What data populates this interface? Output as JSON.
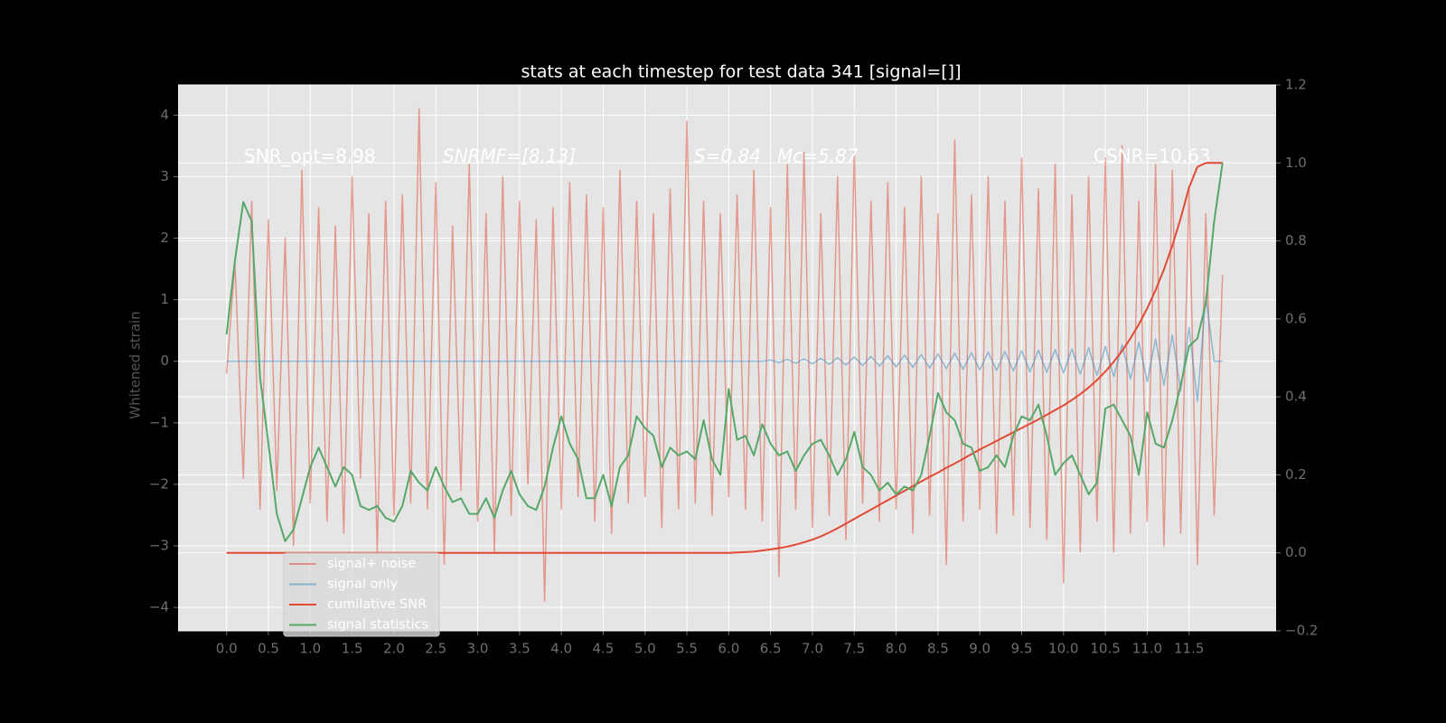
{
  "chart_data": {
    "type": "line",
    "title": "stats at each timestep for test data 341 [signal=[]]",
    "ylabel": "Whitened strain",
    "annotations": [
      "SNR_opt=8.98",
      "SNRMF=[8.13]",
      "S=0.84",
      "Mc=5.87",
      "CSNR=10.63"
    ],
    "x": [
      0,
      0.1,
      0.2,
      0.3,
      0.4,
      0.5,
      0.6,
      0.7,
      0.8,
      0.9,
      1,
      1.1,
      1.2,
      1.3,
      1.4,
      1.5,
      1.6,
      1.7,
      1.8,
      1.9,
      2,
      2.1,
      2.2,
      2.3,
      2.4,
      2.5,
      2.6,
      2.7,
      2.8,
      2.9,
      3,
      3.1,
      3.2,
      3.3,
      3.4,
      3.5,
      3.6,
      3.7,
      3.8,
      3.9,
      4,
      4.1,
      4.2,
      4.3,
      4.4,
      4.5,
      4.6,
      4.7,
      4.8,
      4.9,
      5,
      5.1,
      5.2,
      5.3,
      5.4,
      5.5,
      5.6,
      5.7,
      5.8,
      5.9,
      6,
      6.1,
      6.2,
      6.3,
      6.4,
      6.5,
      6.6,
      6.7,
      6.8,
      6.9,
      7,
      7.1,
      7.2,
      7.3,
      7.4,
      7.5,
      7.6,
      7.7,
      7.8,
      7.9,
      8,
      8.1,
      8.2,
      8.3,
      8.4,
      8.5,
      8.6,
      8.7,
      8.8,
      8.9,
      9,
      9.1,
      9.2,
      9.3,
      9.4,
      9.5,
      9.6,
      9.7,
      9.8,
      9.9,
      10,
      10.1,
      10.2,
      10.3,
      10.4,
      10.5,
      10.6,
      10.7,
      10.8,
      10.9,
      11,
      11.1,
      11.2,
      11.3,
      11.4,
      11.5,
      11.6,
      11.7,
      11.8,
      11.9
    ],
    "series": [
      {
        "name": "signal+ noise",
        "color": "#E24A33",
        "alpha": 0.5,
        "values": [
          -0.2,
          1.6,
          -1.9,
          2.6,
          -2.4,
          2.3,
          -2.1,
          2.0,
          -3.0,
          3.1,
          -2.3,
          2.5,
          -2.6,
          2.2,
          -2.8,
          3.0,
          -1.9,
          2.4,
          -3.1,
          2.6,
          -2.5,
          2.7,
          -2.3,
          4.1,
          -2.4,
          2.9,
          -3.3,
          2.2,
          -2.1,
          3.2,
          -2.6,
          2.4,
          -3.1,
          3.0,
          -2.5,
          2.6,
          -2.0,
          2.3,
          -3.9,
          2.5,
          -2.4,
          2.9,
          -2.2,
          2.7,
          -2.6,
          2.5,
          -2.8,
          3.1,
          -2.3,
          2.6,
          -2.2,
          2.4,
          -2.7,
          2.8,
          -2.4,
          3.9,
          -2.3,
          2.6,
          -2.5,
          2.4,
          -2.2,
          2.7,
          -2.4,
          3.1,
          -2.6,
          2.5,
          -3.5,
          3.2,
          -2.4,
          3.4,
          -2.7,
          2.4,
          -2.5,
          3.0,
          -2.9,
          3.4,
          -2.3,
          2.6,
          -2.6,
          2.9,
          -2.4,
          2.5,
          -2.8,
          3.0,
          -2.5,
          2.4,
          -3.3,
          3.6,
          -2.6,
          2.7,
          -2.4,
          3.0,
          -2.8,
          2.6,
          -2.5,
          3.3,
          -2.7,
          2.8,
          -2.9,
          3.2,
          -3.6,
          2.7,
          -3.1,
          3.0,
          -2.6,
          3.3,
          -3.1,
          3.5,
          -2.8,
          2.6,
          -2.6,
          3.2,
          -3.0,
          3.1,
          -2.8,
          2.8,
          -3.3,
          2.4,
          -2.5,
          1.4
        ]
      },
      {
        "name": "signal only",
        "color": "#348ABD",
        "alpha": 0.5,
        "values": [
          0,
          0,
          0,
          0,
          0,
          0,
          0,
          0,
          0,
          0,
          0,
          0,
          0,
          0,
          0,
          0,
          0,
          0,
          0,
          0,
          0,
          0,
          0,
          0,
          0,
          0,
          0,
          0,
          0,
          0,
          0,
          0,
          0,
          0,
          0,
          0,
          0,
          0,
          0,
          0,
          0,
          0,
          0,
          0,
          0,
          0,
          0,
          0,
          0,
          0,
          0,
          0,
          0,
          0,
          0,
          0,
          0,
          0,
          0,
          0,
          0,
          0,
          0,
          0,
          0,
          0.02,
          -0.02,
          0.03,
          -0.03,
          0.04,
          -0.04,
          0.05,
          -0.05,
          0.06,
          -0.06,
          0.07,
          -0.07,
          0.08,
          -0.08,
          0.09,
          -0.09,
          0.1,
          -0.1,
          0.11,
          -0.11,
          0.12,
          -0.12,
          0.13,
          -0.13,
          0.14,
          -0.14,
          0.15,
          -0.15,
          0.16,
          -0.16,
          0.17,
          -0.17,
          0.18,
          -0.18,
          0.19,
          -0.19,
          0.2,
          -0.21,
          0.22,
          -0.23,
          0.24,
          -0.25,
          0.27,
          -0.29,
          0.31,
          -0.33,
          0.36,
          -0.39,
          0.43,
          -0.48,
          0.55,
          -0.65,
          1.05,
          0,
          0
        ]
      },
      {
        "name": "cumilative SNR",
        "color": "#E24A33",
        "axis": "y2",
        "values": [
          0,
          0,
          0,
          0,
          0,
          0,
          0,
          0,
          0,
          0,
          0,
          0,
          0,
          0,
          0,
          0,
          0,
          0,
          0,
          0,
          0,
          0,
          0,
          0,
          0,
          0,
          0,
          0,
          0,
          0,
          0,
          0,
          0,
          0,
          0,
          0,
          0,
          0,
          0,
          0,
          0,
          0,
          0,
          0,
          0,
          0,
          0,
          0,
          0,
          0,
          0,
          0,
          0,
          0,
          0,
          0,
          0,
          0,
          0,
          0,
          0,
          0.001,
          0.002,
          0.003,
          0.006,
          0.009,
          0.012,
          0.016,
          0.021,
          0.027,
          0.034,
          0.042,
          0.052,
          0.063,
          0.075,
          0.087,
          0.099,
          0.111,
          0.123,
          0.135,
          0.147,
          0.159,
          0.171,
          0.183,
          0.195,
          0.206,
          0.218,
          0.229,
          0.241,
          0.253,
          0.265,
          0.276,
          0.287,
          0.298,
          0.309,
          0.32,
          0.331,
          0.342,
          0.354,
          0.366,
          0.378,
          0.392,
          0.407,
          0.424,
          0.443,
          0.465,
          0.49,
          0.518,
          0.55,
          0.586,
          0.627,
          0.674,
          0.727,
          0.788,
          0.858,
          0.937,
          0.99,
          1.0,
          1.0,
          1.0
        ]
      },
      {
        "name": "signal statistics",
        "color": "#55A868",
        "axis": "y2",
        "values": [
          0.56,
          0.75,
          0.9,
          0.85,
          0.45,
          0.28,
          0.1,
          0.03,
          0.06,
          0.14,
          0.22,
          0.27,
          0.22,
          0.17,
          0.22,
          0.2,
          0.12,
          0.11,
          0.12,
          0.09,
          0.08,
          0.12,
          0.21,
          0.18,
          0.16,
          0.22,
          0.17,
          0.13,
          0.14,
          0.1,
          0.1,
          0.14,
          0.09,
          0.16,
          0.21,
          0.15,
          0.12,
          0.11,
          0.17,
          0.27,
          0.35,
          0.28,
          0.24,
          0.14,
          0.14,
          0.2,
          0.12,
          0.22,
          0.25,
          0.35,
          0.32,
          0.3,
          0.22,
          0.27,
          0.25,
          0.26,
          0.24,
          0.34,
          0.24,
          0.2,
          0.42,
          0.29,
          0.3,
          0.25,
          0.33,
          0.28,
          0.25,
          0.26,
          0.21,
          0.25,
          0.28,
          0.29,
          0.25,
          0.2,
          0.24,
          0.31,
          0.22,
          0.2,
          0.16,
          0.18,
          0.15,
          0.17,
          0.16,
          0.2,
          0.3,
          0.41,
          0.36,
          0.34,
          0.28,
          0.27,
          0.21,
          0.22,
          0.25,
          0.22,
          0.3,
          0.35,
          0.34,
          0.38,
          0.3,
          0.2,
          0.23,
          0.25,
          0.2,
          0.15,
          0.18,
          0.37,
          0.38,
          0.34,
          0.3,
          0.2,
          0.36,
          0.28,
          0.27,
          0.34,
          0.43,
          0.53,
          0.55,
          0.64,
          0.85,
          1.0
        ]
      }
    ],
    "xlim": [
      -0.58,
      12.54
    ],
    "xticks": [
      {
        "value": 0,
        "label": "0.0"
      },
      0.5,
      {
        "value": 1,
        "label": "1.0"
      },
      1.5,
      {
        "value": 2,
        "label": "2.0"
      },
      2.5,
      {
        "value": 3,
        "label": "3.0"
      },
      3.5,
      {
        "value": 4,
        "label": "4.0"
      },
      4.5,
      {
        "value": 5,
        "label": "5.0"
      },
      5.5,
      {
        "value": 6,
        "label": "6.0"
      },
      6.5,
      {
        "value": 7,
        "label": "7.0"
      },
      7.5,
      {
        "value": 8,
        "label": "8.0"
      },
      8.5,
      {
        "value": 9,
        "label": "9.0"
      },
      9.5,
      {
        "value": 10,
        "label": "10.0"
      },
      10.5,
      {
        "value": 11,
        "label": "11.0"
      },
      11.5
    ],
    "ylim": [
      -4.38,
      4.49
    ],
    "yticks": [
      {
        "value": -4,
        "label": "−4"
      },
      {
        "value": -3,
        "label": "−3"
      },
      {
        "value": -2,
        "label": "−2"
      },
      {
        "value": -1,
        "label": "−1"
      },
      0,
      1,
      2,
      3,
      4
    ],
    "y2lim": [
      -0.2,
      1.2
    ],
    "y2ticks": [
      {
        "value": -0.2,
        "label": "−0.2"
      },
      {
        "value": 0,
        "label": "0.0"
      },
      0.2,
      0.4,
      0.6,
      0.8,
      {
        "value": 1,
        "label": "1.0"
      },
      1.2
    ],
    "grid": true,
    "legend": "lower left"
  }
}
